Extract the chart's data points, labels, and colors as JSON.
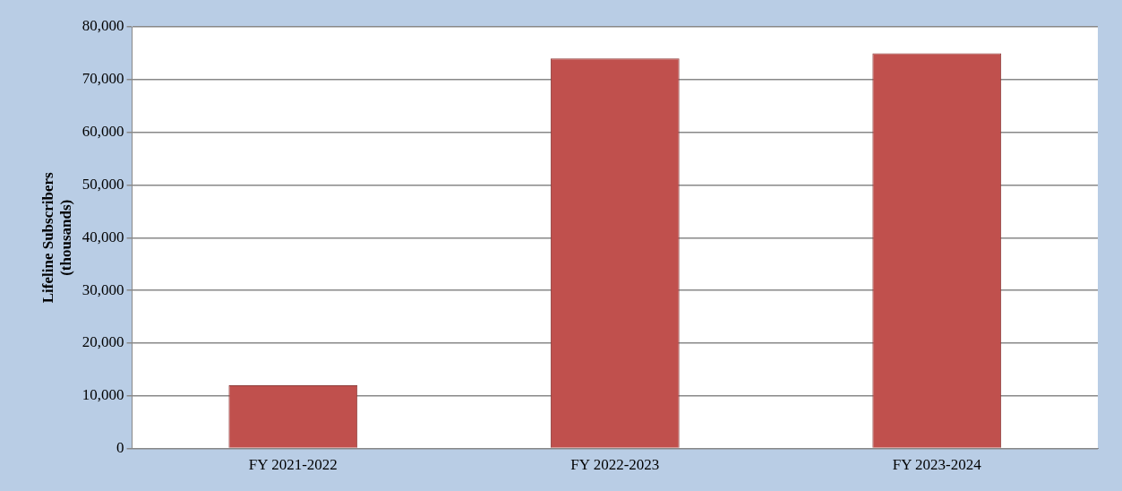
{
  "chart_data": {
    "type": "bar",
    "ylabel": "Lifeline Subscribers\n(thousands)",
    "categories": [
      "FY 2021-2022",
      "FY 2022-2023",
      "FY 2023-2024"
    ],
    "values": [
      12000,
      74000,
      75000
    ],
    "color": "#c0504d",
    "ylim": [
      0,
      80000
    ],
    "yticks": [
      {
        "value": 0,
        "label": "0"
      },
      {
        "value": 10000,
        "label": "10,000"
      },
      {
        "value": 20000,
        "label": "20,000"
      },
      {
        "value": 30000,
        "label": "30,000"
      },
      {
        "value": 40000,
        "label": "40,000"
      },
      {
        "value": 50000,
        "label": "50,000"
      },
      {
        "value": 60000,
        "label": "60,000"
      },
      {
        "value": 70000,
        "label": "70,000"
      },
      {
        "value": 80000,
        "label": "80,000"
      }
    ],
    "grid": "y",
    "legend": false
  }
}
